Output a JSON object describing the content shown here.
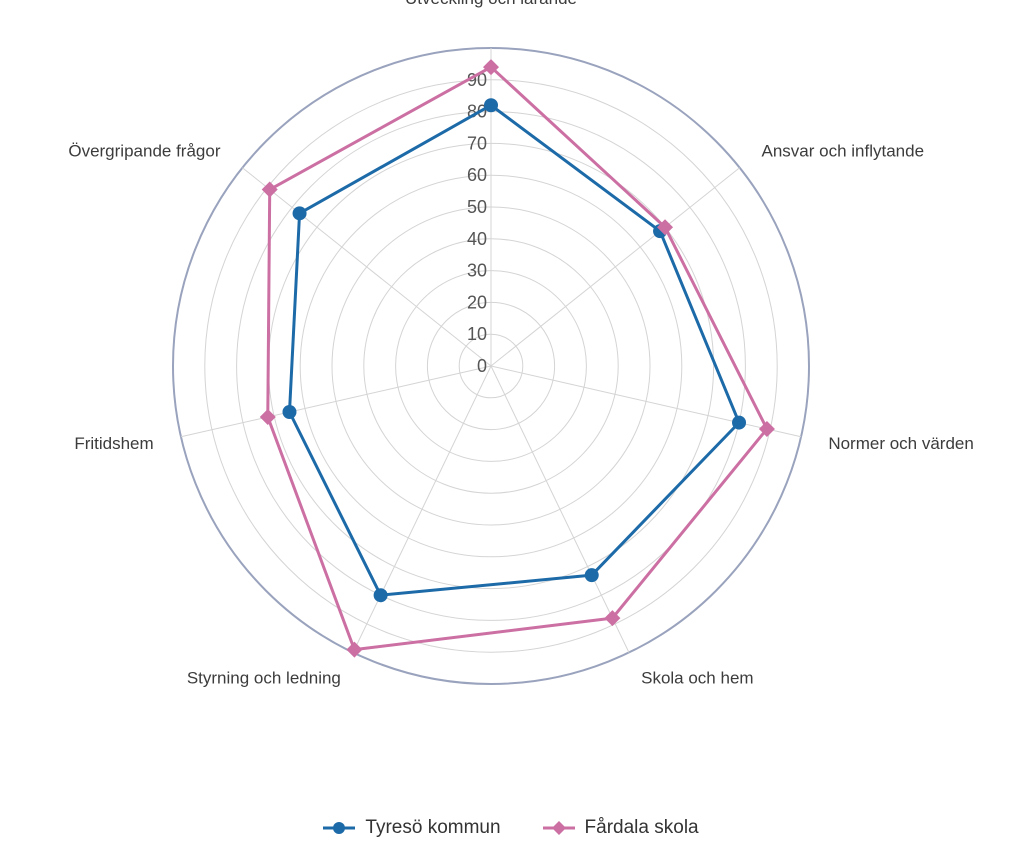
{
  "chart_data": {
    "type": "radar",
    "title": "",
    "categories": [
      "Utveckling och lärande",
      "Ansvar och inflytande",
      "Normer och värden",
      "Skola och hem",
      "Styrning och ledning",
      "Fritidshem",
      "Övergripande frågor"
    ],
    "ticks": [
      "0",
      "10",
      "20",
      "30",
      "40",
      "50",
      "60",
      "70",
      "80",
      "90"
    ],
    "range": [
      0,
      100
    ],
    "grid": true,
    "legend_position": "bottom",
    "series": [
      {
        "name": "Tyresö kommun",
        "color": "#1d6aa8",
        "marker": "circle",
        "values": [
          82,
          68,
          80,
          73,
          80,
          65,
          77
        ]
      },
      {
        "name": "Fårdala skola",
        "color": "#cc6fa3",
        "marker": "diamond",
        "values": [
          94,
          70,
          89,
          88,
          99,
          72,
          89
        ]
      }
    ]
  }
}
